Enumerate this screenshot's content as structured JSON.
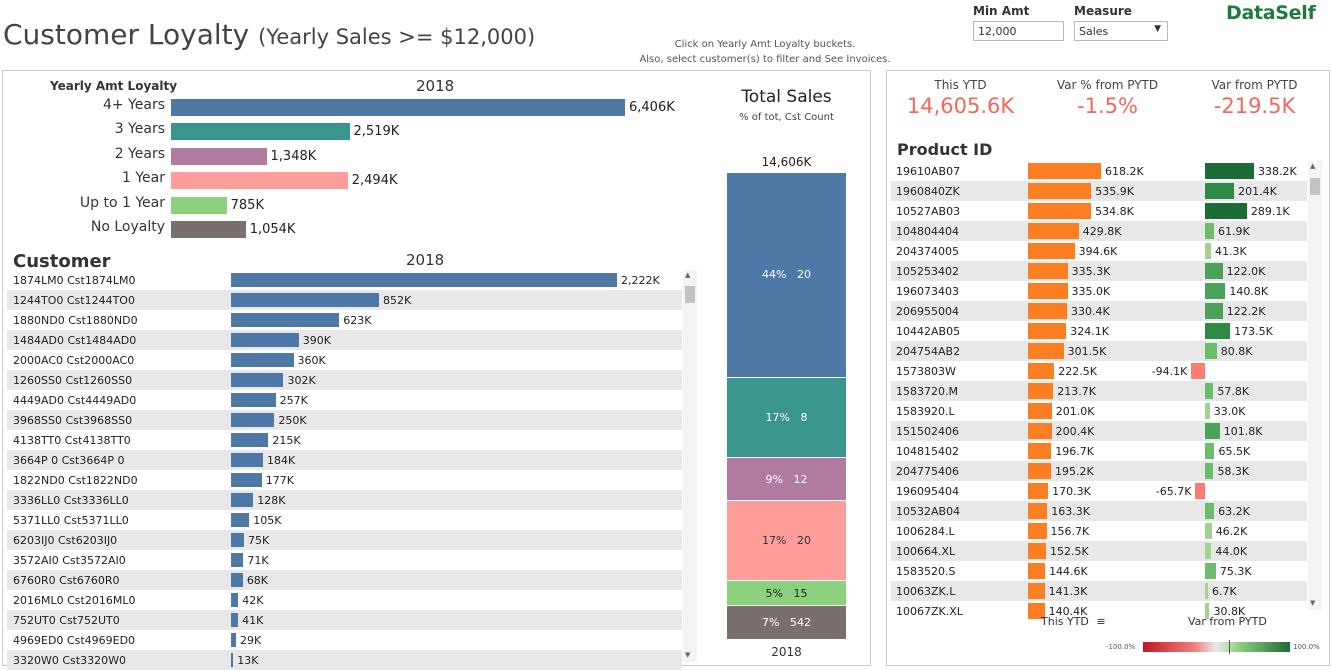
{
  "header": {
    "title": "Customer Loyalty",
    "subtitle": "(Yearly Sales >= $12,000)",
    "note_line1": "Click on Yearly Amt Loyalty buckets.",
    "note_line2": "Also, select customer(s) to filter and See Invoices.",
    "min_amt_label": "Min Amt",
    "min_amt_value": "12,000",
    "measure_label": "Measure",
    "measure_value": "Sales",
    "logo": "DataSelf"
  },
  "colors": {
    "blue": "#4e79a7",
    "teal": "#3a968d",
    "purple": "#b07aa1",
    "pink": "#ff9d9a",
    "green": "#8cd17d",
    "brown": "#79706e",
    "orange": "#f28e2b",
    "orange_bar": "#fd7e21",
    "red_neg": "#f97e6f"
  },
  "loyalty_chart": {
    "header": "Yearly Amt Loyalty",
    "year": "2018",
    "type": "bar",
    "categories": [
      "4+ Years",
      "3 Years",
      "2 Years",
      "1 Year",
      "Up to 1 Year",
      "No Loyalty"
    ],
    "values": [
      6406,
      2519,
      1348,
      2494,
      785,
      1054
    ],
    "labels": [
      "6,406K",
      "2,519K",
      "1,348K",
      "2,494K",
      "785K",
      "1,054K"
    ],
    "colors": [
      "#4e79a7",
      "#3a968d",
      "#b07aa1",
      "#ff9d9a",
      "#8cd17d",
      "#79706e"
    ]
  },
  "customer_chart": {
    "header": "Customer",
    "year": "2018",
    "type": "bar",
    "categories": [
      "1874LM0  Cst1874LM0",
      "1244TO0  Cst1244TO0",
      "1880ND0  Cst1880ND0",
      "1484AD0  Cst1484AD0",
      "2000AC0  Cst2000AC0",
      "1260SS0  Cst1260SS0",
      "4449AD0  Cst4449AD0",
      "3968SS0  Cst3968SS0",
      "4138TT0  Cst4138TT0",
      "3664P 0  Cst3664P 0",
      "1822ND0  Cst1822ND0",
      "3336LL0  Cst3336LL0",
      "5371LL0  Cst5371LL0",
      "6203IJ0  Cst6203IJ0",
      "3572AI0  Cst3572AI0",
      "6760R0  Cst6760R0",
      "2016ML0  Cst2016ML0",
      "752UT0  Cst752UT0",
      "4969ED0  Cst4969ED0",
      "3320W0  Cst3320W0"
    ],
    "values": [
      2222,
      852,
      623,
      390,
      360,
      302,
      257,
      250,
      215,
      184,
      177,
      128,
      105,
      75,
      71,
      68,
      42,
      41,
      29,
      13
    ],
    "labels": [
      "2,222K",
      "852K",
      "623K",
      "390K",
      "360K",
      "302K",
      "257K",
      "250K",
      "215K",
      "184K",
      "177K",
      "128K",
      "105K",
      "75K",
      "71K",
      "68K",
      "42K",
      "41K",
      "29K",
      "13K"
    ],
    "color": "#4e79a7"
  },
  "total_sales": {
    "title": "Total Sales",
    "subtitle": "% of tot, Cst Count",
    "total_label": "14,606K",
    "year": "2018",
    "type": "bar",
    "segments": [
      {
        "pct": "44%",
        "count": "20",
        "value": 6406,
        "color": "#4e79a7"
      },
      {
        "pct": "17%",
        "count": "8",
        "value": 2519,
        "color": "#3a968d"
      },
      {
        "pct": "9%",
        "count": "12",
        "value": 1348,
        "color": "#b07aa1"
      },
      {
        "pct": "17%",
        "count": "20",
        "value": 2494,
        "color": "#ff9d9a"
      },
      {
        "pct": "5%",
        "count": "15",
        "value": 785,
        "color": "#8cd17d"
      },
      {
        "pct": "7%",
        "count": "542",
        "value": 1054,
        "color": "#79706e"
      }
    ]
  },
  "kpis": [
    {
      "label": "This YTD",
      "value": "14,605.6K"
    },
    {
      "label": "Var % from PYTD",
      "value": "-1.5%"
    },
    {
      "label": "Var from PYTD",
      "value": "-219.5K"
    }
  ],
  "product_chart": {
    "header": "Product ID",
    "type": "bar",
    "footer_left": "This YTD",
    "footer_right": "Var from PYTD",
    "legend_min": "-100.0%",
    "legend_max": "100.0%",
    "products": [
      "19610AB07",
      "1960840ZK",
      "10527AB03",
      "104804404",
      "204374005",
      "105253402",
      "196073403",
      "206955004",
      "10442AB05",
      "204754AB2",
      "1573803W",
      "1583720.M",
      "1583920.L",
      "151502406",
      "104815402",
      "204775406",
      "196095404",
      "10532AB04",
      "1006284.L",
      "100664.XL",
      "1583520.S",
      "10063ZK.L",
      "10067ZK.XL"
    ],
    "ytd": [
      618.2,
      535.9,
      534.8,
      429.8,
      394.6,
      335.3,
      335.0,
      330.4,
      324.1,
      301.5,
      222.5,
      213.7,
      201.0,
      200.4,
      196.7,
      195.2,
      170.3,
      163.3,
      156.7,
      152.5,
      144.6,
      141.3,
      140.4
    ],
    "ytd_labels": [
      "618.2K",
      "535.9K",
      "534.8K",
      "429.8K",
      "394.6K",
      "335.3K",
      "335.0K",
      "330.4K",
      "324.1K",
      "301.5K",
      "222.5K",
      "213.7K",
      "201.0K",
      "200.4K",
      "196.7K",
      "195.2K",
      "170.3K",
      "163.3K",
      "156.7K",
      "152.5K",
      "144.6K",
      "141.3K",
      "140.4K"
    ],
    "var": [
      338.2,
      201.4,
      289.1,
      61.9,
      41.3,
      122.0,
      140.8,
      122.2,
      173.5,
      80.8,
      -94.1,
      57.8,
      33.0,
      101.8,
      65.5,
      58.3,
      -65.7,
      63.2,
      46.2,
      44.0,
      75.3,
      6.7,
      30.8
    ],
    "var_labels": [
      "338.2K",
      "201.4K",
      "289.1K",
      "61.9K",
      "41.3K",
      "122.0K",
      "140.8K",
      "122.2K",
      "173.5K",
      "80.8K",
      "-94.1K",
      "57.8K",
      "33.0K",
      "101.8K",
      "65.5K",
      "58.3K",
      "-65.7K",
      "63.2K",
      "46.2K",
      "44.0K",
      "75.3K",
      "6.7K",
      "30.8K"
    ]
  }
}
